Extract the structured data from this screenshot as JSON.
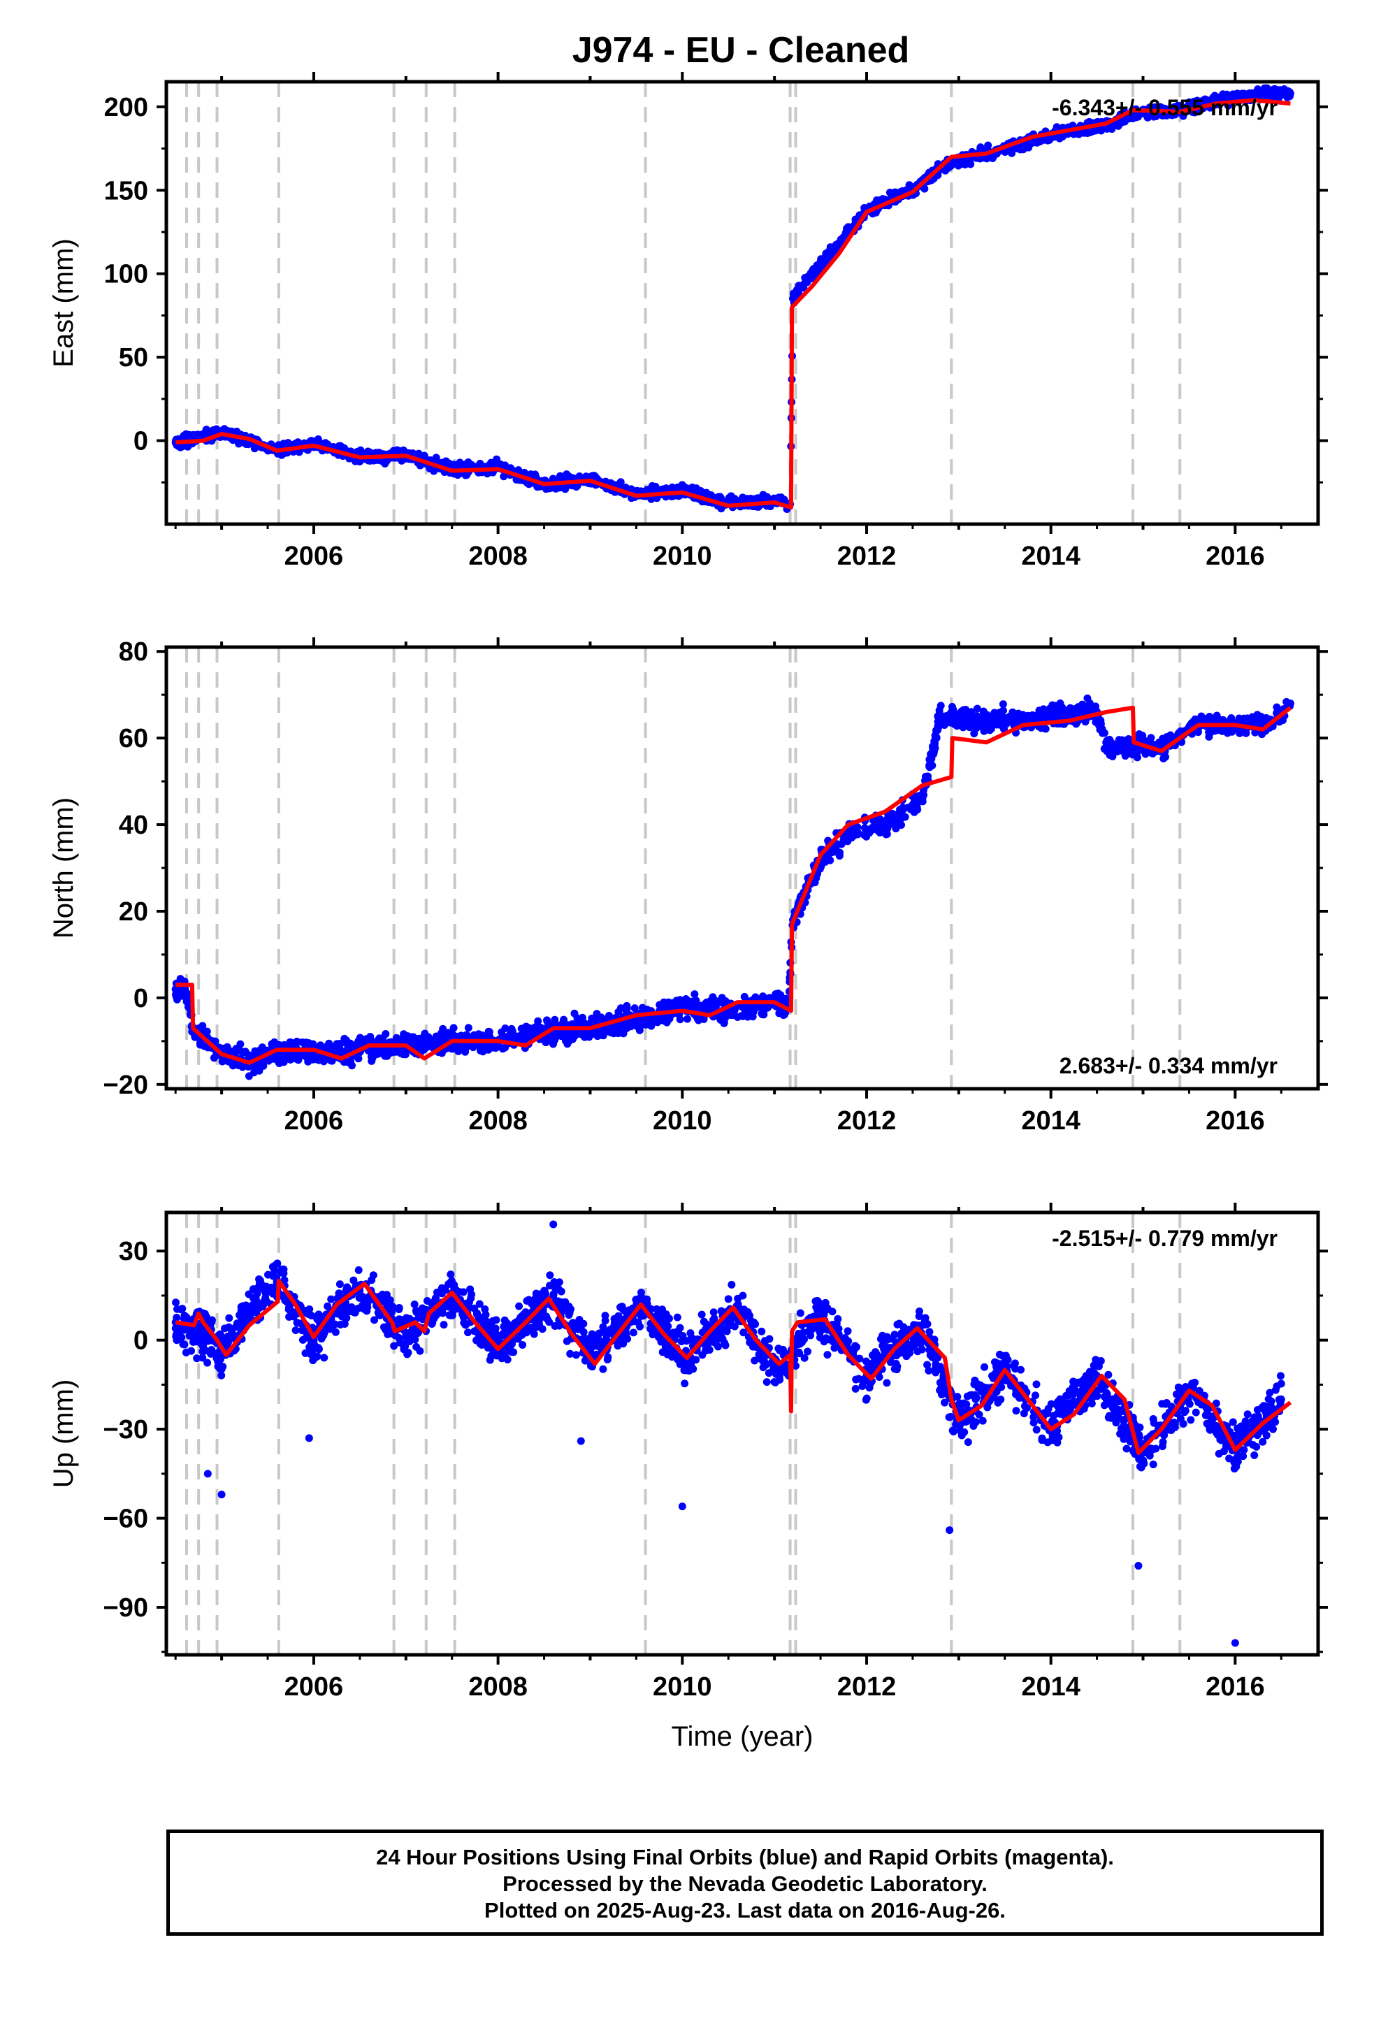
{
  "chart_data": [
    {
      "type": "scatter",
      "title": "J974  - EU - Cleaned",
      "ylabel": "East (mm)",
      "xlabel": "",
      "ylim": [
        -50,
        215
      ],
      "xlim": [
        2004.4,
        2016.9
      ],
      "yticks": [
        0,
        50,
        100,
        150,
        200
      ],
      "xticks": [
        2006,
        2008,
        2010,
        2012,
        2014,
        2016
      ],
      "rate_text": "-6.343+/- 0.555 mm/yr",
      "rate_position": "top-right",
      "equipment_change_epochs": [
        2004.62,
        2004.75,
        2004.95,
        2005.62,
        2006.87,
        2007.22,
        2007.53,
        2009.6,
        2011.17,
        2011.23,
        2012.92,
        2014.89,
        2015.4
      ],
      "series": [
        {
          "name": "Final Orbits (blue)",
          "color": "#0000ff",
          "kind": "points",
          "x": [
            2004.5,
            2004.8,
            2005.0,
            2005.3,
            2005.6,
            2006.0,
            2006.5,
            2007.0,
            2007.5,
            2008.0,
            2008.5,
            2009.0,
            2009.5,
            2010.0,
            2010.5,
            2011.0,
            2011.17,
            2011.2,
            2011.4,
            2011.7,
            2012.0,
            2012.5,
            2012.9,
            2013.3,
            2013.8,
            2014.2,
            2014.6,
            2014.9,
            2015.4,
            2015.8,
            2016.2,
            2016.6
          ],
          "y": [
            -1,
            2,
            5,
            0,
            -6,
            -2,
            -10,
            -9,
            -17,
            -16,
            -26,
            -23,
            -32,
            -30,
            -38,
            -36,
            -38,
            85,
            100,
            118,
            138,
            150,
            166,
            172,
            180,
            186,
            189,
            196,
            198,
            204,
            207,
            208
          ]
        },
        {
          "name": "Model",
          "color": "#ff0000",
          "kind": "line",
          "x": [
            2004.5,
            2004.8,
            2005.0,
            2005.3,
            2005.6,
            2006.0,
            2006.5,
            2007.0,
            2007.5,
            2008.0,
            2008.5,
            2009.0,
            2009.5,
            2010.0,
            2010.5,
            2011.0,
            2011.18,
            2011.19,
            2011.4,
            2011.7,
            2012.0,
            2012.5,
            2012.92,
            2013.3,
            2013.8,
            2014.2,
            2014.6,
            2014.89,
            2015.4,
            2015.8,
            2016.2,
            2016.6
          ],
          "y": [
            -1,
            0,
            4,
            1,
            -6,
            -3,
            -10,
            -9,
            -18,
            -17,
            -26,
            -24,
            -33,
            -31,
            -39,
            -37,
            -40,
            80,
            92,
            112,
            137,
            149,
            170,
            172,
            182,
            186,
            190,
            198,
            197,
            202,
            204,
            202
          ]
        }
      ]
    },
    {
      "type": "scatter",
      "ylabel": "North (mm)",
      "xlabel": "",
      "ylim": [
        -21,
        81
      ],
      "xlim": [
        2004.4,
        2016.9
      ],
      "yticks": [
        -20,
        0,
        20,
        40,
        60,
        80
      ],
      "xticks": [
        2006,
        2008,
        2010,
        2012,
        2014,
        2016
      ],
      "rate_text": "2.683+/- 0.334 mm/yr",
      "rate_position": "bottom-right",
      "equipment_change_epochs": [
        2004.62,
        2004.75,
        2004.95,
        2005.62,
        2006.87,
        2007.22,
        2007.53,
        2009.6,
        2011.17,
        2011.23,
        2012.92,
        2014.89,
        2015.4
      ],
      "series": [
        {
          "name": "Final Orbits (blue)",
          "color": "#0000ff",
          "kind": "points",
          "x": [
            2004.5,
            2004.6,
            2004.7,
            2005.0,
            2005.3,
            2005.6,
            2006.0,
            2006.5,
            2007.0,
            2007.5,
            2008.0,
            2008.5,
            2009.0,
            2009.5,
            2010.0,
            2010.5,
            2011.0,
            2011.15,
            2011.2,
            2011.5,
            2011.8,
            2012.2,
            2012.6,
            2012.8,
            2013.2,
            2013.6,
            2014.0,
            2014.5,
            2014.6,
            2014.9,
            2015.2,
            2015.6,
            2016.0,
            2016.4,
            2016.6
          ],
          "y": [
            2,
            3,
            -8,
            -13,
            -15,
            -12,
            -13,
            -12,
            -11,
            -10,
            -10,
            -8,
            -7,
            -5,
            -2,
            -3,
            -1,
            -2,
            18,
            32,
            38,
            40,
            46,
            65,
            64,
            64,
            65,
            66,
            58,
            58,
            58,
            63,
            63,
            63,
            68
          ]
        },
        {
          "name": "Model",
          "color": "#ff0000",
          "kind": "line",
          "x": [
            2004.5,
            2004.68,
            2004.69,
            2005.0,
            2005.3,
            2005.6,
            2006.0,
            2006.3,
            2006.6,
            2007.0,
            2007.2,
            2007.5,
            2008.0,
            2008.3,
            2008.6,
            2009.0,
            2009.5,
            2010.0,
            2010.3,
            2010.6,
            2011.0,
            2011.18,
            2011.19,
            2011.5,
            2011.8,
            2012.2,
            2012.6,
            2012.92,
            2012.93,
            2013.3,
            2013.7,
            2014.2,
            2014.6,
            2014.89,
            2014.9,
            2015.2,
            2015.6,
            2016.0,
            2016.3,
            2016.6
          ],
          "y": [
            3,
            3,
            -7,
            -13,
            -15,
            -12,
            -12,
            -14,
            -11,
            -11,
            -14,
            -10,
            -10,
            -11,
            -7,
            -7,
            -4,
            -3,
            -4,
            -1,
            -1,
            -3,
            17,
            33,
            40,
            43,
            49,
            51,
            60,
            59,
            63,
            64,
            66,
            67,
            59,
            57,
            63,
            63,
            62,
            67
          ]
        }
      ]
    },
    {
      "type": "scatter",
      "ylabel": "Up (mm)",
      "xlabel": "Time (year)",
      "ylim": [
        -106,
        43
      ],
      "xlim": [
        2004.4,
        2016.9
      ],
      "yticks": [
        -90,
        -60,
        -30,
        0,
        30
      ],
      "xticks": [
        2006,
        2008,
        2010,
        2012,
        2014,
        2016
      ],
      "rate_text": "-2.515+/- 0.779 mm/yr",
      "rate_position": "top-right",
      "equipment_change_epochs": [
        2004.62,
        2004.75,
        2004.95,
        2005.62,
        2006.87,
        2007.22,
        2007.53,
        2009.6,
        2011.17,
        2011.23,
        2012.92,
        2014.89,
        2015.4
      ],
      "series": [
        {
          "name": "Final Orbits (blue)",
          "color": "#0000ff",
          "kind": "points",
          "x": [
            2004.5,
            2004.8,
            2005.0,
            2005.3,
            2005.6,
            2006.0,
            2006.5,
            2007.0,
            2007.5,
            2008.0,
            2008.6,
            2009.0,
            2009.6,
            2010.0,
            2010.6,
            2011.0,
            2011.5,
            2012.0,
            2012.6,
            2013.0,
            2013.5,
            2014.0,
            2014.5,
            2015.0,
            2015.5,
            2016.0,
            2016.5,
            2004.85,
            2005.0,
            2005.95,
            2008.9,
            2010.0,
            2012.9,
            2014.95,
            2016.0,
            2008.6
          ],
          "y": [
            6,
            2,
            -5,
            10,
            20,
            0,
            18,
            2,
            15,
            -2,
            15,
            -4,
            12,
            -5,
            10,
            -10,
            8,
            -12,
            5,
            -28,
            -10,
            -30,
            -12,
            -38,
            -17,
            -37,
            -20,
            -45,
            -52,
            -33,
            -34,
            -56,
            -64,
            -76,
            -102,
            39
          ]
        },
        {
          "name": "Model",
          "color": "#ff0000",
          "kind": "line",
          "x": [
            2004.5,
            2004.7,
            2004.75,
            2004.8,
            2004.95,
            2005.05,
            2005.3,
            2005.61,
            2005.62,
            2005.8,
            2006.0,
            2006.25,
            2006.55,
            2006.85,
            2006.88,
            2007.1,
            2007.2,
            2007.25,
            2007.5,
            2007.75,
            2008.0,
            2008.3,
            2008.55,
            2008.8,
            2009.05,
            2009.3,
            2009.55,
            2009.8,
            2010.05,
            2010.3,
            2010.55,
            2010.8,
            2011.05,
            2011.17,
            2011.18,
            2011.19,
            2011.25,
            2011.55,
            2011.8,
            2012.05,
            2012.3,
            2012.55,
            2012.85,
            2012.92,
            2013.0,
            2013.25,
            2013.5,
            2013.75,
            2014.0,
            2014.25,
            2014.55,
            2014.8,
            2014.95,
            2015.2,
            2015.5,
            2015.75,
            2016.0,
            2016.3,
            2016.6
          ],
          "y": [
            6,
            5,
            9,
            6,
            0,
            -5,
            5,
            13,
            20,
            12,
            1,
            12,
            19,
            6,
            3,
            6,
            3,
            9,
            16,
            6,
            -3,
            6,
            14,
            2,
            -8,
            2,
            12,
            2,
            -6,
            3,
            11,
            0,
            -8,
            -5,
            -24,
            3,
            6,
            7,
            -5,
            -13,
            -3,
            4,
            -6,
            -20,
            -27,
            -22,
            -10,
            -20,
            -30,
            -25,
            -12,
            -20,
            -38,
            -30,
            -17,
            -22,
            -37,
            -28,
            -21
          ]
        }
      ]
    }
  ],
  "footer": {
    "line1": "24 Hour Positions Using Final Orbits (blue) and Rapid Orbits (magenta).",
    "line2": "Processed by the Nevada Geodetic Laboratory.",
    "line3": "Plotted on 2025-Aug-23. Last data on 2016-Aug-26."
  },
  "colors": {
    "points": "#0000ff",
    "model": "#ff0000",
    "event_lines": "#c8c8c8"
  }
}
